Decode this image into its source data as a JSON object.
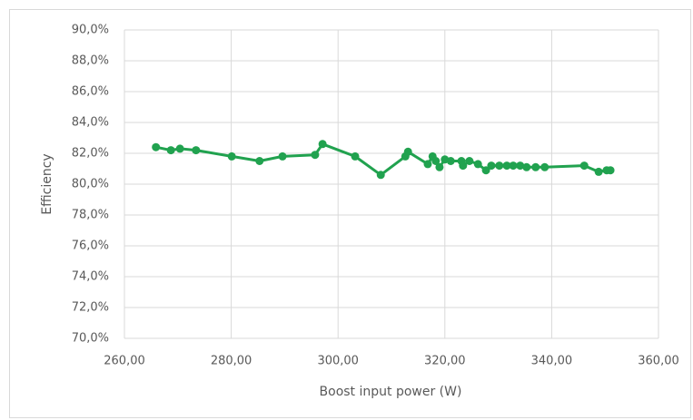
{
  "chart_data": {
    "type": "scatter-line",
    "xlabel": "Boost input power (W)",
    "ylabel": "Efficiency",
    "x": [
      265.9,
      268.7,
      270.4,
      273.4,
      280.1,
      285.3,
      289.6,
      295.7,
      297.1,
      303.2,
      308.0,
      312.6,
      313.1,
      316.8,
      317.7,
      318.3,
      319.0,
      320.0,
      321.1,
      323.1,
      323.4,
      324.6,
      326.2,
      327.7,
      328.7,
      330.2,
      331.6,
      332.8,
      334.1,
      335.3,
      337.0,
      338.7,
      346.1,
      348.8,
      350.3,
      351.0
    ],
    "values": [
      82.4,
      82.2,
      82.3,
      82.2,
      81.8,
      81.5,
      81.8,
      81.9,
      82.6,
      81.8,
      80.6,
      81.8,
      82.1,
      81.3,
      81.8,
      81.5,
      81.1,
      81.6,
      81.5,
      81.5,
      81.2,
      81.5,
      81.3,
      80.9,
      81.2,
      81.2,
      81.2,
      81.2,
      81.2,
      81.1,
      81.1,
      81.1,
      81.2,
      80.8,
      80.9,
      80.9
    ],
    "color": "#21a24f",
    "xlim": [
      260,
      360
    ],
    "xticks": [
      {
        "value": 260,
        "label": "260,00"
      },
      {
        "value": 280,
        "label": "280,00"
      },
      {
        "value": 300,
        "label": "300,00"
      },
      {
        "value": 320,
        "label": "320,00"
      },
      {
        "value": 340,
        "label": "340,00"
      },
      {
        "value": 360,
        "label": "360,00"
      }
    ],
    "ylim": [
      70,
      90
    ],
    "yticks": [
      {
        "value": 70,
        "label": "70,0%"
      },
      {
        "value": 72,
        "label": "72,0%"
      },
      {
        "value": 74,
        "label": "74,0%"
      },
      {
        "value": 76,
        "label": "76,0%"
      },
      {
        "value": 78,
        "label": "78,0%"
      },
      {
        "value": 80,
        "label": "80,0%"
      },
      {
        "value": 82,
        "label": "82,0%"
      },
      {
        "value": 84,
        "label": "84,0%"
      },
      {
        "value": 86,
        "label": "86,0%"
      },
      {
        "value": 88,
        "label": "88,0%"
      },
      {
        "value": 90,
        "label": "90,0%"
      }
    ],
    "grid": true
  }
}
